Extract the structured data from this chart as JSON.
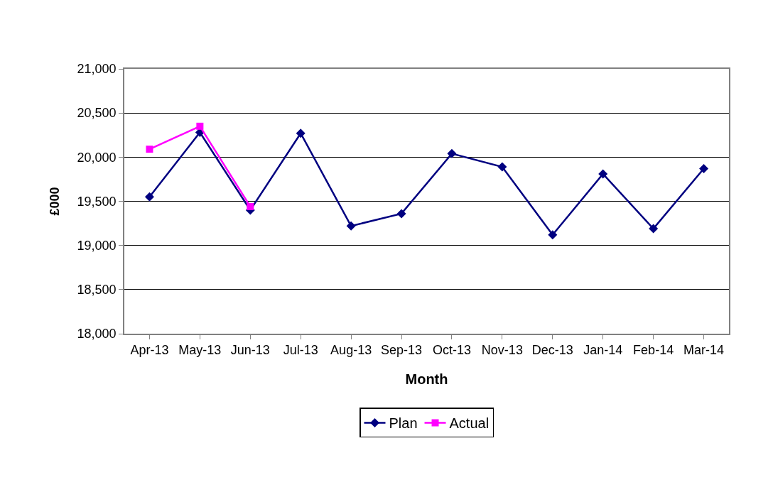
{
  "chart_data": {
    "type": "line",
    "xlabel": "Month",
    "ylabel": "£000",
    "categories": [
      "Apr-13",
      "May-13",
      "Jun-13",
      "Jul-13",
      "Aug-13",
      "Sep-13",
      "Oct-13",
      "Nov-13",
      "Dec-13",
      "Jan-14",
      "Feb-14",
      "Mar-14"
    ],
    "series": [
      {
        "name": "Plan",
        "color": "#000080",
        "marker": "diamond",
        "values": [
          19550,
          20280,
          19400,
          20270,
          19220,
          19360,
          20040,
          19890,
          19120,
          19810,
          19190,
          19870
        ]
      },
      {
        "name": "Actual",
        "color": "#ff00ff",
        "marker": "square",
        "values": [
          20090,
          20350,
          19440,
          null,
          null,
          null,
          null,
          null,
          null,
          null,
          null,
          null
        ]
      }
    ],
    "ylim": [
      18000,
      21000
    ],
    "yticks": [
      {
        "value": 18000,
        "label": "18,000"
      },
      {
        "value": 18500,
        "label": "18,500"
      },
      {
        "value": 19000,
        "label": "19,000"
      },
      {
        "value": 19500,
        "label": "19,500"
      },
      {
        "value": 20000,
        "label": "20,000"
      },
      {
        "value": 20500,
        "label": "20,500"
      },
      {
        "value": 21000,
        "label": "21,000"
      }
    ],
    "grid": "y",
    "legend": "bottom",
    "line_style": "solid"
  }
}
